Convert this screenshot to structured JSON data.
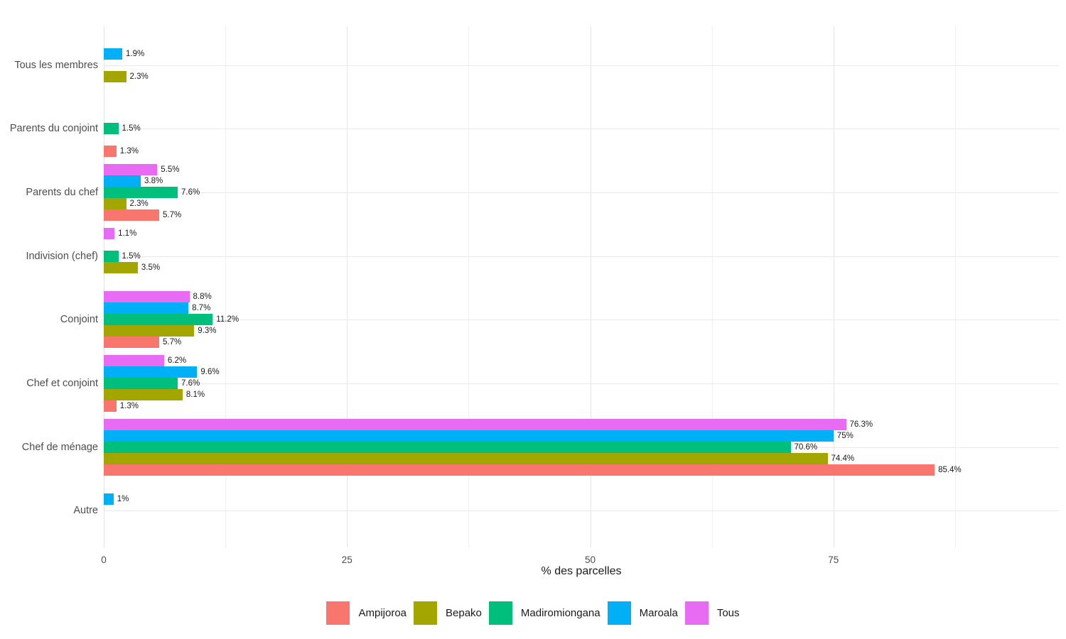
{
  "chart_data": {
    "type": "bar",
    "orientation": "horizontal",
    "title": "",
    "xlabel": "% des parcelles",
    "ylabel": "",
    "grid": true,
    "legend_position": "bottom",
    "x_ticks": [
      "0",
      "25",
      "50",
      "75"
    ],
    "x_tick_values": [
      0,
      25,
      50,
      75
    ],
    "x_minor_values": [
      12.5,
      37.5,
      62.5,
      87.5
    ],
    "xlim": [
      0,
      98.2
    ],
    "categories": [
      "Tous les membres",
      "Parents du conjoint",
      "Parents du chef",
      "Indivision (chef)",
      "Conjoint",
      "Chef et conjoint",
      "Chef de ménage",
      "Autre"
    ],
    "series": [
      {
        "name": "Tous",
        "color": "#E76BF3",
        "values": [
          null,
          null,
          5.5,
          1.1,
          8.8,
          6.2,
          76.3,
          null
        ],
        "labels": [
          "",
          "",
          "5.5%",
          "1.1%",
          "8.8%",
          "6.2%",
          "76.3%",
          ""
        ]
      },
      {
        "name": "Maroala",
        "color": "#00B0F6",
        "values": [
          1.9,
          null,
          3.8,
          null,
          8.7,
          9.6,
          75,
          1
        ],
        "labels": [
          "1.9%",
          "",
          "3.8%",
          "",
          "8.7%",
          "9.6%",
          "75%",
          "1%"
        ]
      },
      {
        "name": "Madiromiongana",
        "color": "#00BF7D",
        "values": [
          null,
          1.5,
          7.6,
          1.5,
          11.2,
          7.6,
          70.6,
          null
        ],
        "labels": [
          "",
          "1.5%",
          "7.6%",
          "1.5%",
          "11.2%",
          "7.6%",
          "70.6%",
          ""
        ]
      },
      {
        "name": "Bepako",
        "color": "#A3A500",
        "values": [
          2.3,
          null,
          2.3,
          3.5,
          9.3,
          8.1,
          74.4,
          null
        ],
        "labels": [
          "2.3%",
          "",
          "2.3%",
          "3.5%",
          "9.3%",
          "8.1%",
          "74.4%",
          ""
        ]
      },
      {
        "name": "Ampijoroa",
        "color": "#F8766D",
        "values": [
          null,
          1.3,
          5.7,
          null,
          5.7,
          1.3,
          85.4,
          null
        ],
        "labels": [
          "",
          "1.3%",
          "5.7%",
          "",
          "5.7%",
          "1.3%",
          "85.4%",
          ""
        ]
      }
    ],
    "legend": [
      {
        "label": "Ampijoroa",
        "color": "#F8766D"
      },
      {
        "label": "Bepako",
        "color": "#A3A500"
      },
      {
        "label": "Madiromiongana",
        "color": "#00BF7D"
      },
      {
        "label": "Maroala",
        "color": "#00B0F6"
      },
      {
        "label": "Tous",
        "color": "#E76BF3"
      }
    ],
    "style_colors": {
      "background": "#ffffff",
      "grid_major": "#e5e5e5",
      "grid_minor": "#f0f0f0",
      "axis_text": "#4d4d4d",
      "value_label_text": "#1a1a1a"
    }
  }
}
